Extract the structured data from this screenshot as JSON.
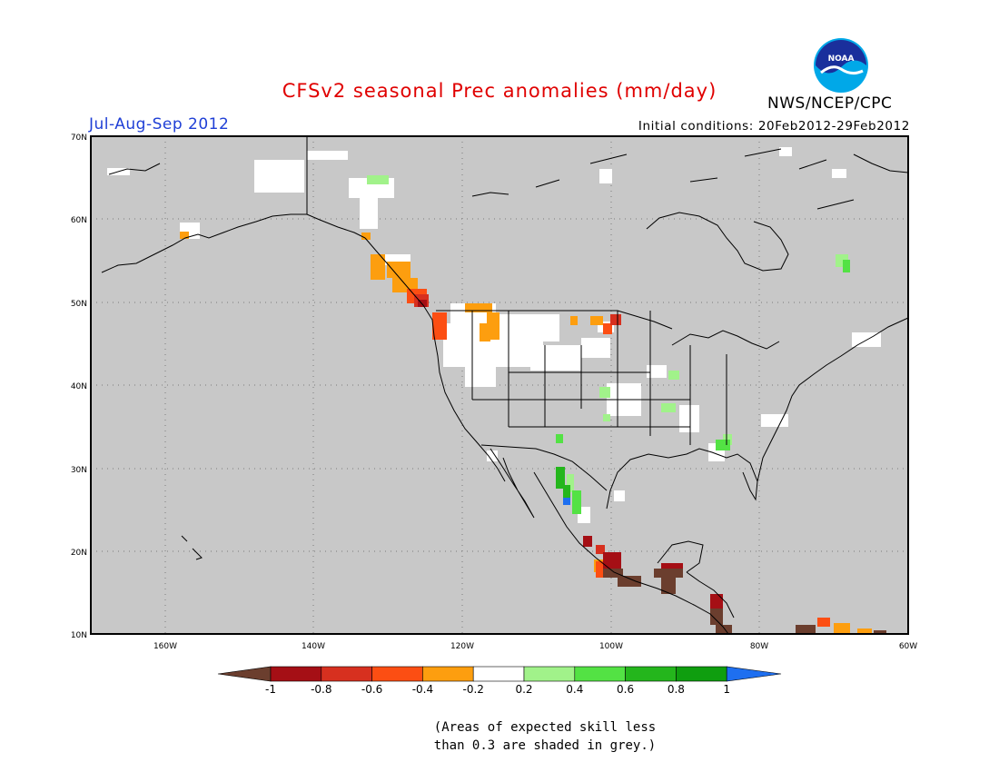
{
  "title": "CFSv2 seasonal Prec anomalies (mm/day)",
  "period": "Jul-Aug-Sep 2012",
  "initial_conditions": "Initial conditions: 20Feb2012-29Feb2012",
  "agency": "NWS/NCEP/CPC",
  "logo_text": "NOAA",
  "note_lines": [
    "(Areas of expected skill less",
    "than 0.3 are shaded in grey.)"
  ],
  "colors": {
    "title": "#e00000",
    "period": "#1f3fd6",
    "skill_grey": "#c8c8c8",
    "coast": "#000000"
  },
  "lat_labels": [
    "70N",
    "60N",
    "50N",
    "40N",
    "30N",
    "20N",
    "10N"
  ],
  "lon_labels": [
    "160W",
    "140W",
    "120W",
    "100W",
    "80W",
    "60W"
  ],
  "colorbar": {
    "colors": [
      "#6b3e2e",
      "#a50f15",
      "#d7301f",
      "#fc4e13",
      "#fd9e0f",
      "#ffffff",
      "#a1f28a",
      "#53e244",
      "#24b61c",
      "#0f9e0f",
      "#1e6ff0"
    ],
    "tick_labels": [
      "-1",
      "-0.8",
      "-0.6",
      "-0.4",
      "-0.2",
      "0.2",
      "0.4",
      "0.6",
      "0.8",
      "1"
    ]
  }
}
